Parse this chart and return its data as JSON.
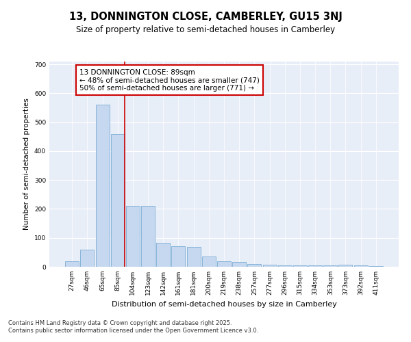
{
  "title": "13, DONNINGTON CLOSE, CAMBERLEY, GU15 3NJ",
  "subtitle": "Size of property relative to semi-detached houses in Camberley",
  "xlabel": "Distribution of semi-detached houses by size in Camberley",
  "ylabel": "Number of semi-detached properties",
  "categories": [
    "27sqm",
    "46sqm",
    "65sqm",
    "85sqm",
    "104sqm",
    "123sqm",
    "142sqm",
    "161sqm",
    "181sqm",
    "200sqm",
    "219sqm",
    "238sqm",
    "257sqm",
    "277sqm",
    "296sqm",
    "315sqm",
    "334sqm",
    "353sqm",
    "373sqm",
    "392sqm",
    "411sqm"
  ],
  "values": [
    18,
    60,
    562,
    460,
    210,
    210,
    84,
    70,
    68,
    35,
    20,
    17,
    10,
    8,
    5,
    5,
    5,
    5,
    8,
    5,
    3
  ],
  "bar_color": "#c5d8f0",
  "bar_edge_color": "#7aadd4",
  "property_line_color": "#cc0000",
  "annotation_text": "13 DONNINGTON CLOSE: 89sqm\n← 48% of semi-detached houses are smaller (747)\n50% of semi-detached houses are larger (771) →",
  "annotation_box_color": "white",
  "annotation_box_edge_color": "#cc0000",
  "ylim": [
    0,
    710
  ],
  "yticks": [
    0,
    100,
    200,
    300,
    400,
    500,
    600,
    700
  ],
  "background_color": "#e8eef8",
  "grid_color": "white",
  "footer": "Contains HM Land Registry data © Crown copyright and database right 2025.\nContains public sector information licensed under the Open Government Licence v3.0.",
  "title_fontsize": 10.5,
  "subtitle_fontsize": 8.5,
  "xlabel_fontsize": 8,
  "ylabel_fontsize": 7.5,
  "tick_fontsize": 6.5,
  "footer_fontsize": 6,
  "annot_fontsize": 7.5
}
